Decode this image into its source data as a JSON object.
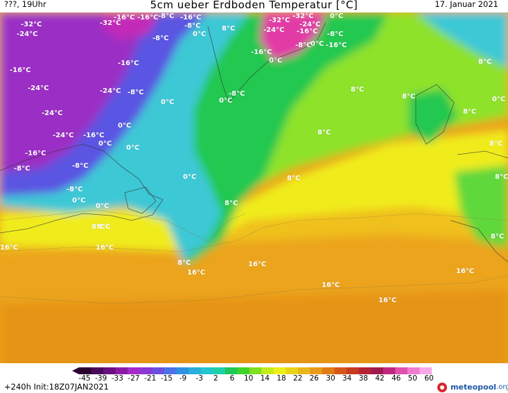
{
  "header": {
    "left": "???, 19Uhr",
    "title": "5cm ueber Erdboden Temperatur [°C]",
    "right": "17. Januar 2021"
  },
  "footer": {
    "run_info": "+240h  Init:18Z07JAN2021",
    "logo_main": "meteopool",
    "logo_suffix": ".org"
  },
  "legend": {
    "ticks": [
      "-45",
      "-39",
      "-33",
      "-27",
      "-21",
      "-15",
      "-9",
      "-3",
      "2",
      "6",
      "10",
      "14",
      "18",
      "22",
      "26",
      "30",
      "34",
      "38",
      "42",
      "46",
      "50",
      "60"
    ],
    "colors": [
      "#2a0030",
      "#4a0a5a",
      "#6a0f80",
      "#8a1aa6",
      "#a52acb",
      "#8a38d6",
      "#6a50e0",
      "#4a72e6",
      "#3090e2",
      "#28aedc",
      "#22c6cc",
      "#20d0a8",
      "#20c85a",
      "#40d428",
      "#7ee020",
      "#c2ec1c",
      "#ecf01c",
      "#e8d41a",
      "#e8b81a",
      "#e89a1a",
      "#e27a16",
      "#d6561a",
      "#c63a22",
      "#b42234",
      "#a01850",
      "#c02880",
      "#e050b0",
      "#f07cd0",
      "#f8a8e8"
    ]
  },
  "colors": {
    "polar_violet": "#9b2fc4",
    "cold_blue": "#5a54e2",
    "cyan": "#3cc8d6",
    "green": "#22c850",
    "lime": "#8ee22a",
    "yellow": "#f0f01e",
    "orange": "#eba41c"
  },
  "map_labels": [
    {
      "text": "-32°C"
    },
    {
      "text": "-24°C"
    },
    {
      "text": "-16°C"
    },
    {
      "text": "-24°C"
    },
    {
      "text": "-24°C"
    },
    {
      "text": "-16°C"
    },
    {
      "text": "-8°C"
    },
    {
      "text": "-32°C"
    },
    {
      "text": "-16°C"
    },
    {
      "text": "-24°C"
    },
    {
      "text": "-8°C"
    },
    {
      "text": "-16°C"
    },
    {
      "text": "-24°C"
    },
    {
      "text": "-16°C"
    },
    {
      "text": "-8°C"
    },
    {
      "text": "-8°C"
    },
    {
      "text": "-8°C"
    },
    {
      "text": "-16°C"
    },
    {
      "text": "0°C"
    },
    {
      "text": "-8°C"
    },
    {
      "text": "0°C"
    },
    {
      "text": "0°C"
    },
    {
      "text": "0°C"
    },
    {
      "text": "8°C"
    },
    {
      "text": "-32°C"
    },
    {
      "text": "-32°C"
    },
    {
      "text": "-24°C"
    },
    {
      "text": "-24°C"
    },
    {
      "text": "-16°C"
    },
    {
      "text": "-8°C"
    },
    {
      "text": "0°C"
    },
    {
      "text": "-16°C"
    },
    {
      "text": "0°C"
    },
    {
      "text": "-16°C"
    },
    {
      "text": "-8°C"
    },
    {
      "text": "0°C"
    },
    {
      "text": "-16°C"
    },
    {
      "text": "-8°C"
    },
    {
      "text": "0°C"
    },
    {
      "text": "0°C"
    },
    {
      "text": "-8°C"
    },
    {
      "text": "8°C"
    },
    {
      "text": "0°C"
    },
    {
      "text": "0°C"
    },
    {
      "text": "8°C"
    },
    {
      "text": "8°C"
    },
    {
      "text": "0°C"
    },
    {
      "text": "8°C"
    },
    {
      "text": "8°C"
    },
    {
      "text": "8°C"
    },
    {
      "text": "8°C"
    },
    {
      "text": "8°C"
    },
    {
      "text": "8°C"
    },
    {
      "text": "8°C"
    },
    {
      "text": "8°C"
    },
    {
      "text": "16°C"
    },
    {
      "text": "16°C"
    },
    {
      "text": "8°C"
    },
    {
      "text": "16°C"
    },
    {
      "text": "16°C"
    },
    {
      "text": "16°C"
    },
    {
      "text": "16°C"
    },
    {
      "text": "16°C"
    },
    {
      "text": "8°C"
    },
    {
      "text": "0°C"
    }
  ]
}
